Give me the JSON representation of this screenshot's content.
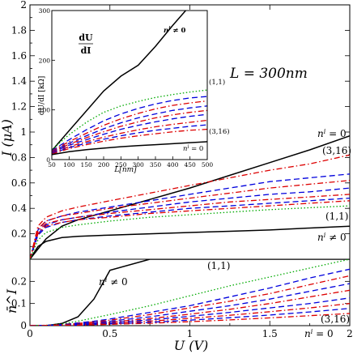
{
  "chart_data": [
    {
      "panel": "main",
      "type": "line",
      "ylabel": "I (μA)",
      "xlim": [
        0,
        2
      ],
      "ylim": [
        0,
        2
      ],
      "yticks": [
        "0",
        "0.2",
        "0.4",
        "0.6",
        "0.8",
        "1",
        "1.2",
        "1.4",
        "1.6",
        "1.8",
        "2"
      ],
      "annotations": {
        "L": "L = 300nm",
        "ni0": "n",
        "ni0_sup": "i",
        "ni0_rest": " = 0",
        "c316": "(3,16)",
        "c11": "(1,1)",
        "nine": "n",
        "nine_sup": "i",
        "nine_rest": " ≠ 0"
      },
      "x": [
        0,
        0.05,
        0.1,
        0.2,
        0.3,
        0.5,
        0.75,
        1.0,
        1.25,
        1.5,
        1.75,
        2.0
      ],
      "series": [
        {
          "style": "solid",
          "color": "#000000",
          "values": [
            0,
            0.08,
            0.16,
            0.26,
            0.31,
            0.38,
            0.47,
            0.56,
            0.66,
            0.76,
            0.86,
            0.97
          ]
        },
        {
          "style": "solid",
          "color": "#000000",
          "values": [
            0,
            0.1,
            0.14,
            0.17,
            0.18,
            0.19,
            0.2,
            0.21,
            0.22,
            0.23,
            0.245,
            0.26
          ]
        },
        {
          "style": "dashdot",
          "color": "#dd0000",
          "values": [
            0,
            0.26,
            0.33,
            0.38,
            0.41,
            0.46,
            0.52,
            0.58,
            0.64,
            0.7,
            0.75,
            0.82
          ]
        },
        {
          "style": "dashed",
          "color": "#0000dd",
          "values": [
            0,
            0.23,
            0.3,
            0.34,
            0.37,
            0.41,
            0.46,
            0.51,
            0.56,
            0.61,
            0.64,
            0.67
          ]
        },
        {
          "style": "dashdot",
          "color": "#dd0000",
          "values": [
            0,
            0.24,
            0.3,
            0.34,
            0.36,
            0.4,
            0.44,
            0.48,
            0.52,
            0.56,
            0.59,
            0.62
          ]
        },
        {
          "style": "dashed",
          "color": "#0000dd",
          "values": [
            0,
            0.2,
            0.27,
            0.31,
            0.33,
            0.37,
            0.41,
            0.45,
            0.48,
            0.51,
            0.53,
            0.56
          ]
        },
        {
          "style": "dashdot",
          "color": "#dd0000",
          "values": [
            0,
            0.22,
            0.28,
            0.31,
            0.33,
            0.36,
            0.39,
            0.42,
            0.45,
            0.47,
            0.49,
            0.51
          ]
        },
        {
          "style": "dashed",
          "color": "#0000dd",
          "values": [
            0,
            0.19,
            0.25,
            0.29,
            0.31,
            0.34,
            0.37,
            0.4,
            0.42,
            0.44,
            0.46,
            0.48
          ]
        },
        {
          "style": "dashdot",
          "color": "#dd0000",
          "values": [
            0,
            0.2,
            0.26,
            0.29,
            0.31,
            0.33,
            0.36,
            0.38,
            0.4,
            0.42,
            0.44,
            0.46
          ]
        },
        {
          "style": "dotted",
          "color": "#00aa00",
          "values": [
            0,
            0.15,
            0.21,
            0.25,
            0.27,
            0.3,
            0.33,
            0.35,
            0.37,
            0.39,
            0.405,
            0.42
          ]
        }
      ]
    },
    {
      "panel": "inset",
      "type": "line",
      "xlabel": "L[nm]",
      "ylabel": "dU/dI [kΩ]",
      "frac_num": "dU",
      "frac_den": "dI",
      "xlim": [
        50,
        500
      ],
      "ylim": [
        0,
        300
      ],
      "xticks": [
        "50",
        "100",
        "150",
        "200",
        "250",
        "300",
        "350",
        "400",
        "450",
        "500"
      ],
      "yticks": [
        "0",
        "100",
        "200",
        "300"
      ],
      "annotations": {
        "nine": "n",
        "nine_sup": "i",
        "nine_rest": " ≠ 0",
        "ni0": "n",
        "ni0_sup": "i",
        "ni0_rest": " = 0",
        "c11": "(1,1)",
        "c316": "(3,16)"
      },
      "x": [
        50,
        100,
        150,
        200,
        250,
        300,
        350,
        400,
        450,
        500
      ],
      "series": [
        {
          "style": "solid",
          "color": "#000000",
          "values": [
            18,
            58,
            98,
            138,
            168,
            190,
            228,
            270,
            310,
            350
          ]
        },
        {
          "style": "dotted",
          "color": "#00aa00",
          "values": [
            20,
            50,
            75,
            95,
            108,
            117,
            125,
            131,
            136,
            140
          ]
        },
        {
          "style": "dashed",
          "color": "#0000dd",
          "values": [
            18,
            40,
            60,
            78,
            92,
            103,
            112,
            119,
            124,
            127
          ]
        },
        {
          "style": "dashdot",
          "color": "#dd0000",
          "values": [
            17,
            36,
            53,
            69,
            82,
            93,
            102,
            109,
            114,
            118
          ]
        },
        {
          "style": "dashed",
          "color": "#0000dd",
          "values": [
            16,
            33,
            48,
            62,
            74,
            84,
            92,
            99,
            104,
            108
          ]
        },
        {
          "style": "dashdot",
          "color": "#dd0000",
          "values": [
            15,
            31,
            44,
            56,
            67,
            76,
            84,
            90,
            95,
            99
          ]
        },
        {
          "style": "dashed",
          "color": "#0000dd",
          "values": [
            14,
            29,
            40,
            51,
            61,
            69,
            76,
            82,
            87,
            91
          ]
        },
        {
          "style": "dashdot",
          "color": "#dd0000",
          "values": [
            13,
            26,
            36,
            45,
            53,
            60,
            66,
            71,
            75,
            79
          ]
        },
        {
          "style": "dashed",
          "color": "#0000dd",
          "values": [
            12,
            24,
            33,
            41,
            48,
            54,
            59,
            63,
            67,
            70
          ]
        },
        {
          "style": "dashdot",
          "color": "#dd0000",
          "values": [
            11,
            22,
            30,
            37,
            43,
            48,
            52,
            56,
            59,
            61
          ]
        },
        {
          "style": "solid",
          "color": "#000000",
          "values": [
            10,
            16,
            20,
            23,
            26,
            28,
            30,
            32,
            34,
            36
          ]
        }
      ]
    },
    {
      "panel": "bottom",
      "type": "line",
      "xlabel": "U (V)",
      "ylabel": "n̄^I",
      "xlim": [
        0,
        2
      ],
      "ylim": [
        0,
        0.3
      ],
      "xticks": [
        "0",
        "0.5",
        "1",
        "1.5",
        "2"
      ],
      "yticks": [
        "0",
        "0.1",
        "0.2"
      ],
      "annotations": {
        "nine": "n",
        "nine_sup": "i",
        "nine_rest": " ≠ 0",
        "c11": "(1,1)",
        "c316": "(3,16)",
        "ni0": "n",
        "ni0_sup": "i",
        "ni0_rest": " = 0"
      },
      "x": [
        0,
        0.1,
        0.2,
        0.3,
        0.4,
        0.5,
        0.75,
        1.0,
        1.25,
        1.5,
        1.75,
        2.0
      ],
      "series": [
        {
          "style": "solid",
          "color": "#000000",
          "values": [
            0,
            0.0,
            0.01,
            0.04,
            0.12,
            0.25,
            0.3,
            0.3,
            0.3,
            0.3,
            0.3,
            0.3
          ]
        },
        {
          "style": "dotted",
          "color": "#00aa00",
          "values": [
            0,
            0.002,
            0.008,
            0.02,
            0.035,
            0.05,
            0.09,
            0.135,
            0.18,
            0.22,
            0.26,
            0.3
          ]
        },
        {
          "style": "dashed",
          "color": "#0000dd",
          "values": [
            0,
            0.001,
            0.005,
            0.012,
            0.02,
            0.03,
            0.06,
            0.09,
            0.13,
            0.17,
            0.215,
            0.255
          ]
        },
        {
          "style": "dashdot",
          "color": "#dd0000",
          "values": [
            0,
            0.001,
            0.004,
            0.01,
            0.017,
            0.025,
            0.05,
            0.08,
            0.11,
            0.145,
            0.185,
            0.225
          ]
        },
        {
          "style": "dashed",
          "color": "#0000dd",
          "values": [
            0,
            0.001,
            0.003,
            0.008,
            0.014,
            0.02,
            0.04,
            0.065,
            0.09,
            0.12,
            0.155,
            0.19
          ]
        },
        {
          "style": "dashdot",
          "color": "#dd0000",
          "values": [
            0,
            0.001,
            0.003,
            0.006,
            0.011,
            0.016,
            0.032,
            0.052,
            0.074,
            0.1,
            0.13,
            0.16
          ]
        },
        {
          "style": "dashed",
          "color": "#0000dd",
          "values": [
            0,
            0.0,
            0.002,
            0.005,
            0.009,
            0.013,
            0.026,
            0.042,
            0.06,
            0.08,
            0.1,
            0.125
          ]
        },
        {
          "style": "dashdot",
          "color": "#dd0000",
          "values": [
            0,
            0.0,
            0.002,
            0.004,
            0.007,
            0.01,
            0.02,
            0.033,
            0.047,
            0.063,
            0.08,
            0.1
          ]
        },
        {
          "style": "dashed",
          "color": "#0000dd",
          "values": [
            0,
            0.0,
            0.001,
            0.003,
            0.005,
            0.008,
            0.015,
            0.025,
            0.036,
            0.048,
            0.062,
            0.078
          ]
        },
        {
          "style": "dashdot",
          "color": "#dd0000",
          "values": [
            0,
            0.0,
            0.001,
            0.002,
            0.004,
            0.006,
            0.011,
            0.018,
            0.026,
            0.035,
            0.045,
            0.055
          ]
        }
      ]
    }
  ]
}
